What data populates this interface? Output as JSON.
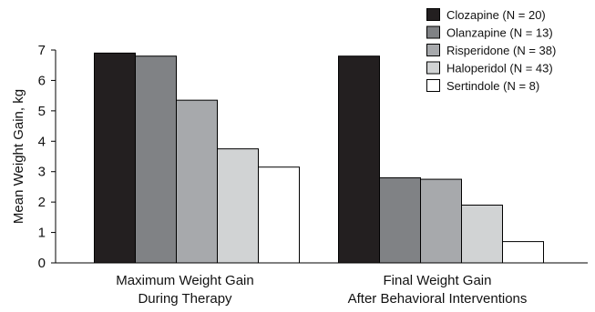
{
  "chart_data": {
    "type": "bar",
    "categories": [
      [
        "Maximum Weight Gain",
        "During Therapy"
      ],
      [
        "Final Weight Gain",
        "After Behavioral Interventions"
      ]
    ],
    "series": [
      {
        "name": "Clozapine (N = 20)",
        "color": "#231f20",
        "values": [
          6.9,
          6.8
        ]
      },
      {
        "name": "Olanzapine (N = 13)",
        "color": "#808285",
        "values": [
          6.8,
          2.8
        ]
      },
      {
        "name": "Risperidone (N = 38)",
        "color": "#a7a9ac",
        "values": [
          5.35,
          2.75
        ]
      },
      {
        "name": "Haloperidol (N = 43)",
        "color": "#d1d3d4",
        "values": [
          3.75,
          1.9
        ]
      },
      {
        "name": "Sertindole (N = 8)",
        "color": "#ffffff",
        "values": [
          3.15,
          0.7
        ]
      }
    ],
    "ylabel": "Mean Weight Gain, kg",
    "xlabel": "",
    "title": "",
    "ylim": [
      0,
      7
    ],
    "yticks": [
      "0",
      "1",
      "2",
      "3",
      "4",
      "5",
      "6",
      "7"
    ],
    "grid": false,
    "legend_position": "top-right"
  }
}
